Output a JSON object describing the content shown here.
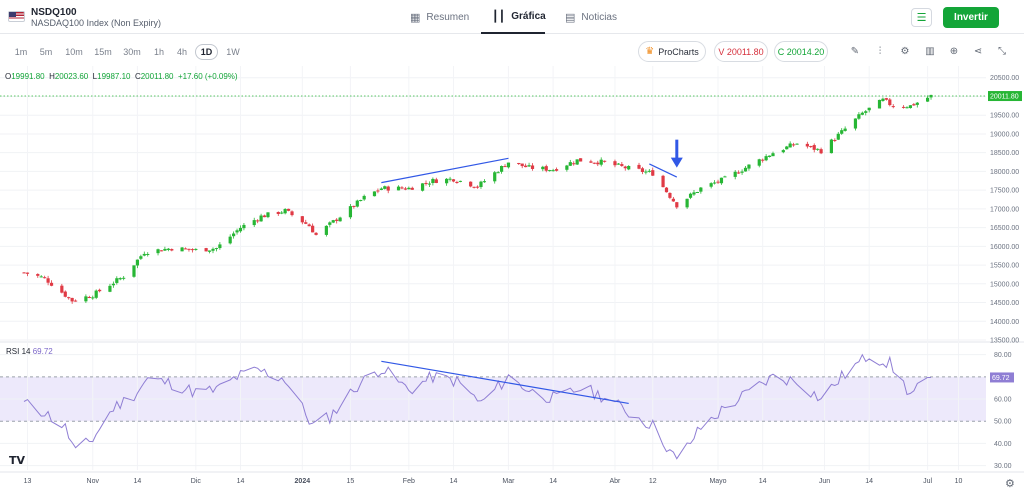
{
  "header": {
    "symbol": "NSDQ100",
    "name": "NASDAQ100 Index (Non Expiry)",
    "tabs": [
      {
        "label": "Resumen",
        "icon": "dashboard-icon"
      },
      {
        "label": "Gráfica",
        "icon": "candles-icon",
        "active": true
      },
      {
        "label": "Noticias",
        "icon": "news-icon"
      }
    ],
    "invest_label": "Invertir",
    "watchlist_icon": "add-to-watchlist-icon"
  },
  "toolbar": {
    "timeframes": [
      "1m",
      "5m",
      "10m",
      "15m",
      "30m",
      "1h",
      "4h",
      "1D",
      "1W"
    ],
    "selected_timeframe": "1D",
    "prochart_label": "ProCharts",
    "sell_label": "V 20011.80",
    "buy_label": "C 20014.20",
    "tools": [
      "pencil-icon",
      "indicators-icon",
      "settings-icon",
      "bar-chart-icon",
      "add-icon",
      "share-icon",
      "collapse-icon"
    ]
  },
  "ohlc": {
    "o_key": "O",
    "o": "19991.80",
    "h_key": "H",
    "h": "20023.60",
    "l_key": "L",
    "l": "19987.10",
    "c_key": "C",
    "c": "20011.80",
    "change": "+17.60 (+0.09%)"
  },
  "rsi": {
    "label": "RSI",
    "period": "14",
    "value": "69.72"
  },
  "colors": {
    "up": "#27b635",
    "down": "#e03a45",
    "rsi_line": "#8f7ed4",
    "rsi_band": "#ede9fb",
    "trendline": "#3158e6",
    "accent": "#13a538"
  },
  "chart_data": [
    {
      "type": "candlestick",
      "yticks": [
        13500,
        14000,
        14500,
        15000,
        15500,
        16000,
        16500,
        17000,
        17500,
        18000,
        18500,
        19000,
        19500,
        20000,
        20500
      ],
      "ylim": [
        13500,
        20600
      ],
      "ytick_labels": [
        "13500.00",
        "14000.00",
        "14500.00",
        "15000.00",
        "15500.00",
        "16000.00",
        "16500.00",
        "17000.00",
        "17500.00",
        "18000.00",
        "18500.00",
        "19000.00",
        "19500.00",
        "20000.00",
        "20500.00"
      ],
      "last_price": 20011.8,
      "last_price_label": "20011.80",
      "xtick_labels": [
        "13",
        "Nov",
        "14",
        "Dic",
        "14",
        "2024",
        "15",
        "Feb",
        "14",
        "Mar",
        "14",
        "Abr",
        "12",
        "Mayo",
        "14",
        "Jun",
        "14",
        "Jul",
        "10"
      ],
      "close_path": [
        [
          "2023-10-12",
          15300
        ],
        [
          "2023-10-18",
          15150
        ],
        [
          "2023-10-26",
          14550
        ],
        [
          "2023-11-01",
          14700
        ],
        [
          "2023-11-10",
          15200
        ],
        [
          "2023-11-16",
          15850
        ],
        [
          "2023-11-24",
          15950
        ],
        [
          "2023-12-01",
          15900
        ],
        [
          "2023-12-07",
          15950
        ],
        [
          "2023-12-14",
          16500
        ],
        [
          "2023-12-20",
          16800
        ],
        [
          "2023-12-27",
          16950
        ],
        [
          "2024-01-03",
          16550
        ],
        [
          "2024-01-05",
          16300
        ],
        [
          "2024-01-12",
          16800
        ],
        [
          "2024-01-19",
          17300
        ],
        [
          "2024-01-24",
          17550
        ],
        [
          "2024-02-01",
          17550
        ],
        [
          "2024-02-08",
          17750
        ],
        [
          "2024-02-14",
          17800
        ],
        [
          "2024-02-21",
          17600
        ],
        [
          "2024-03-01",
          18250
        ],
        [
          "2024-03-07",
          18100
        ],
        [
          "2024-03-14",
          18050
        ],
        [
          "2024-03-21",
          18300
        ],
        [
          "2024-03-28",
          18250
        ],
        [
          "2024-04-04",
          18100
        ],
        [
          "2024-04-12",
          17950
        ],
        [
          "2024-04-19",
          17100
        ],
        [
          "2024-04-26",
          17550
        ],
        [
          "2024-05-03",
          17800
        ],
        [
          "2024-05-10",
          18150
        ],
        [
          "2024-05-17",
          18500
        ],
        [
          "2024-05-24",
          18750
        ],
        [
          "2024-05-31",
          18550
        ],
        [
          "2024-06-06",
          19050
        ],
        [
          "2024-06-12",
          19550
        ],
        [
          "2024-06-18",
          19900
        ],
        [
          "2024-06-21",
          19750
        ],
        [
          "2024-06-26",
          19750
        ],
        [
          "2024-07-02",
          20011.8
        ]
      ],
      "annotations": [
        {
          "type": "trendline",
          "from": [
            "2024-01-24",
            17700
          ],
          "to": [
            "2024-03-01",
            18350
          ]
        },
        {
          "type": "trendline",
          "from": [
            "2024-04-11",
            18200
          ],
          "to": [
            "2024-04-19",
            17850
          ]
        },
        {
          "type": "arrow-down",
          "at": [
            "2024-04-19",
            18100
          ]
        }
      ]
    },
    {
      "type": "line",
      "name": "RSI 14",
      "yticks": [
        30,
        40,
        50,
        60,
        70,
        80
      ],
      "ytick_labels": [
        "30.00",
        "40.00",
        "50.00",
        "60.00",
        "70.00",
        "80.00"
      ],
      "ylim": [
        28,
        83
      ],
      "band": [
        50,
        70
      ],
      "last_value": 69.72,
      "last_value_label": "69.72",
      "points": [
        [
          "2023-10-12",
          58
        ],
        [
          "2023-10-18",
          54
        ],
        [
          "2023-10-24",
          47
        ],
        [
          "2023-10-27",
          36
        ],
        [
          "2023-11-01",
          42
        ],
        [
          "2023-11-07",
          56
        ],
        [
          "2023-11-13",
          62
        ],
        [
          "2023-11-17",
          69
        ],
        [
          "2023-11-24",
          67
        ],
        [
          "2023-12-01",
          63
        ],
        [
          "2023-12-07",
          64
        ],
        [
          "2023-12-13",
          70
        ],
        [
          "2023-12-19",
          73
        ],
        [
          "2023-12-27",
          69
        ],
        [
          "2024-01-04",
          48
        ],
        [
          "2024-01-09",
          52
        ],
        [
          "2024-01-17",
          66
        ],
        [
          "2024-01-24",
          74
        ],
        [
          "2024-02-01",
          64
        ],
        [
          "2024-02-08",
          70
        ],
        [
          "2024-02-15",
          68
        ],
        [
          "2024-02-22",
          58
        ],
        [
          "2024-03-01",
          70
        ],
        [
          "2024-03-08",
          63
        ],
        [
          "2024-03-15",
          60
        ],
        [
          "2024-03-22",
          65
        ],
        [
          "2024-03-29",
          61
        ],
        [
          "2024-04-05",
          54
        ],
        [
          "2024-04-12",
          48
        ],
        [
          "2024-04-19",
          32
        ],
        [
          "2024-04-26",
          47
        ],
        [
          "2024-05-03",
          56
        ],
        [
          "2024-05-10",
          63
        ],
        [
          "2024-05-17",
          70
        ],
        [
          "2024-05-24",
          68
        ],
        [
          "2024-05-31",
          60
        ],
        [
          "2024-06-06",
          70
        ],
        [
          "2024-06-14",
          80
        ],
        [
          "2024-06-20",
          76
        ],
        [
          "2024-06-26",
          62
        ],
        [
          "2024-07-02",
          69.72
        ]
      ],
      "annotations": [
        {
          "type": "trendline",
          "from": [
            "2024-01-24",
            77
          ],
          "to": [
            "2024-04-05",
            58
          ]
        }
      ]
    }
  ]
}
